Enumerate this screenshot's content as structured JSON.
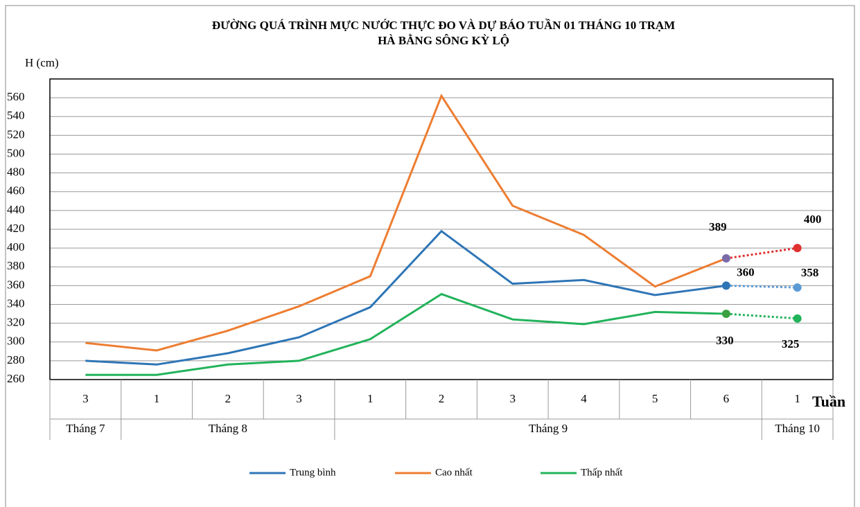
{
  "chart_data": {
    "type": "line",
    "title": [
      "ĐƯỜNG QUÁ TRÌNH MỰC NƯỚC THỰC ĐO VÀ DỰ BÁO TUẦN 01 THÁNG 10 TRẠM",
      "HÀ BẰNG SÔNG KỲ LỘ"
    ],
    "y_label": "H (cm)",
    "x_label": "Tuần",
    "categories": [
      "3",
      "1",
      "2",
      "3",
      "1",
      "2",
      "3",
      "4",
      "5",
      "6",
      "1"
    ],
    "month_groups": [
      {
        "label": "Tháng 7",
        "count": 1
      },
      {
        "label": "Tháng 8",
        "count": 3
      },
      {
        "label": "Tháng 9",
        "count": 6
      },
      {
        "label": "Tháng 10",
        "count": 1
      }
    ],
    "ylim": [
      260,
      580
    ],
    "yticks": [
      260,
      280,
      300,
      320,
      340,
      360,
      380,
      400,
      420,
      440,
      460,
      480,
      500,
      520,
      540,
      560
    ],
    "grid": true,
    "series": [
      {
        "name": "Trung bình",
        "color": "#2e75b6",
        "values": [
          280,
          276,
          288,
          305,
          337,
          418,
          362,
          366,
          350,
          360,
          null
        ],
        "forecast": {
          "color": "#5b9bd5",
          "values": [
            null,
            null,
            null,
            null,
            null,
            null,
            null,
            null,
            null,
            360,
            358
          ]
        }
      },
      {
        "name": "Cao nhất",
        "color": "#ed7d31",
        "values": [
          299,
          291,
          312,
          338,
          370,
          562,
          445,
          414,
          359,
          389,
          null
        ],
        "forecast": {
          "color": "#e03030",
          "marker_color": "#7b6aa8",
          "values": [
            null,
            null,
            null,
            null,
            null,
            null,
            null,
            null,
            null,
            389,
            400
          ]
        }
      },
      {
        "name": "Thấp nhất",
        "color": "#21b35a",
        "values": [
          265,
          265,
          276,
          280,
          303,
          351,
          324,
          319,
          332,
          330,
          null
        ],
        "forecast": {
          "color": "#21b35a",
          "marker_color": "#3aa040",
          "values": [
            null,
            null,
            null,
            null,
            null,
            null,
            null,
            null,
            null,
            330,
            325
          ]
        }
      }
    ],
    "legend": "bottom"
  }
}
